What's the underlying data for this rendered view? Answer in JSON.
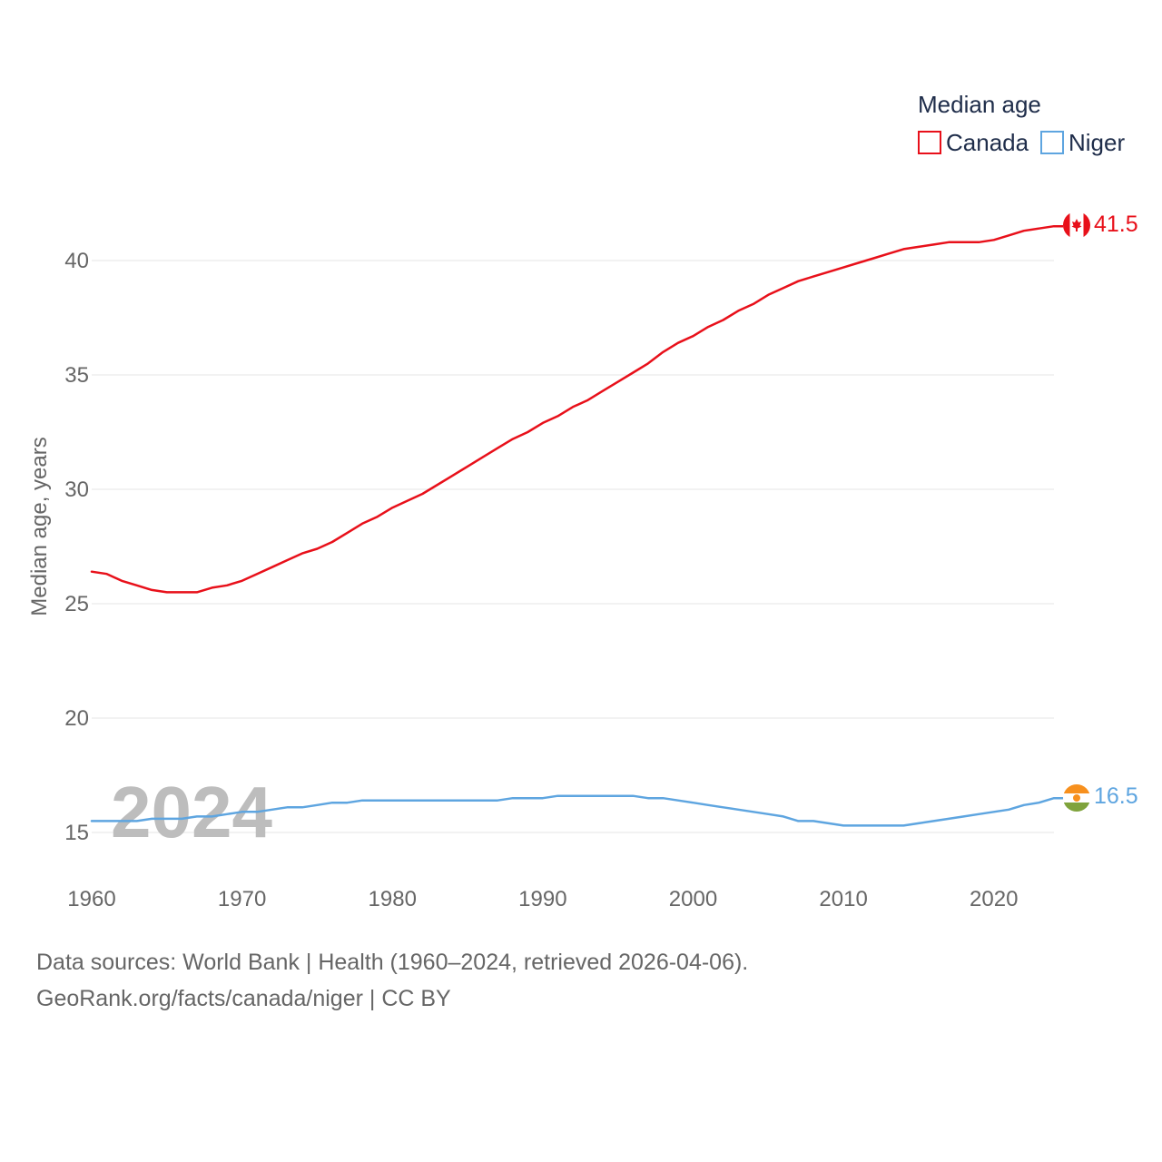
{
  "chart_data": {
    "type": "line",
    "title": "",
    "legend_title": "Median age",
    "legend_placement": "top-right",
    "xlabel": "",
    "ylabel": "Median age, years",
    "xlim": [
      1960,
      2024
    ],
    "ylim": [
      12.5,
      42.5
    ],
    "x_ticks": [
      1960,
      1970,
      1980,
      1990,
      2000,
      2010,
      2020
    ],
    "y_ticks": [
      15,
      20,
      25,
      30,
      35,
      40
    ],
    "grid": true,
    "watermark_year": "2024",
    "x": [
      1960,
      1961,
      1962,
      1963,
      1964,
      1965,
      1966,
      1967,
      1968,
      1969,
      1970,
      1971,
      1972,
      1973,
      1974,
      1975,
      1976,
      1977,
      1978,
      1979,
      1980,
      1981,
      1982,
      1983,
      1984,
      1985,
      1986,
      1987,
      1988,
      1989,
      1990,
      1991,
      1992,
      1993,
      1994,
      1995,
      1996,
      1997,
      1998,
      1999,
      2000,
      2001,
      2002,
      2003,
      2004,
      2005,
      2006,
      2007,
      2008,
      2009,
      2010,
      2011,
      2012,
      2013,
      2014,
      2015,
      2016,
      2017,
      2018,
      2019,
      2020,
      2021,
      2022,
      2023,
      2024
    ],
    "series": [
      {
        "name": "Canada",
        "color": "#e8101a",
        "end_label": "41.5",
        "flag": "canada-flag",
        "values": [
          26.4,
          26.3,
          26.0,
          25.8,
          25.6,
          25.5,
          25.5,
          25.5,
          25.7,
          25.8,
          26.0,
          26.3,
          26.6,
          26.9,
          27.2,
          27.4,
          27.7,
          28.1,
          28.5,
          28.8,
          29.2,
          29.5,
          29.8,
          30.2,
          30.6,
          31.0,
          31.4,
          31.8,
          32.2,
          32.5,
          32.9,
          33.2,
          33.6,
          33.9,
          34.3,
          34.7,
          35.1,
          35.5,
          36.0,
          36.4,
          36.7,
          37.1,
          37.4,
          37.8,
          38.1,
          38.5,
          38.8,
          39.1,
          39.3,
          39.5,
          39.7,
          39.9,
          40.1,
          40.3,
          40.5,
          40.6,
          40.7,
          40.8,
          40.8,
          40.8,
          40.9,
          41.1,
          41.3,
          41.4,
          41.5
        ]
      },
      {
        "name": "Niger",
        "color": "#5ea5e0",
        "end_label": "16.5",
        "flag": "niger-flag",
        "values": [
          15.5,
          15.5,
          15.5,
          15.5,
          15.6,
          15.6,
          15.6,
          15.7,
          15.7,
          15.8,
          15.9,
          15.9,
          16.0,
          16.1,
          16.1,
          16.2,
          16.3,
          16.3,
          16.4,
          16.4,
          16.4,
          16.4,
          16.4,
          16.4,
          16.4,
          16.4,
          16.4,
          16.4,
          16.5,
          16.5,
          16.5,
          16.6,
          16.6,
          16.6,
          16.6,
          16.6,
          16.6,
          16.5,
          16.5,
          16.4,
          16.3,
          16.2,
          16.1,
          16.0,
          15.9,
          15.8,
          15.7,
          15.5,
          15.5,
          15.4,
          15.3,
          15.3,
          15.3,
          15.3,
          15.3,
          15.4,
          15.5,
          15.6,
          15.7,
          15.8,
          15.9,
          16.0,
          16.2,
          16.3,
          16.5
        ]
      }
    ]
  },
  "footer": {
    "sources_line": "Data sources: World Bank | Health (1960–2024, retrieved 2026-04-06).",
    "credit_line": "GeoRank.org/facts/canada/niger | CC BY"
  }
}
